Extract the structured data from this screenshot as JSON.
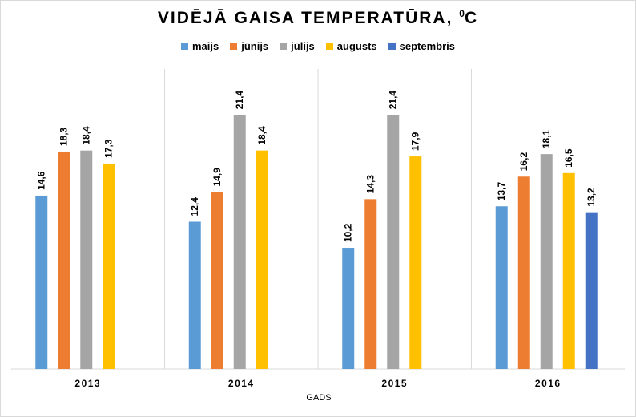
{
  "chart_data": {
    "type": "bar",
    "title": "VIDĒJĀ GAISA TEMPERATŪRA, ",
    "title_unit_sup": "0",
    "title_unit": "C",
    "xlabel": "GADS",
    "ylabel": "",
    "categories": [
      "2013",
      "2014",
      "2015",
      "2016"
    ],
    "series": [
      {
        "name": "maijs",
        "color": "#5b9bd5",
        "values": [
          14.6,
          12.4,
          10.2,
          13.7
        ]
      },
      {
        "name": "jūnijs",
        "color": "#ed7d31",
        "values": [
          18.3,
          14.9,
          14.3,
          16.2
        ]
      },
      {
        "name": "jūlijs",
        "color": "#a5a5a5",
        "values": [
          18.4,
          21.4,
          21.4,
          18.1
        ]
      },
      {
        "name": "augusts",
        "color": "#ffc000",
        "values": [
          17.3,
          18.4,
          17.9,
          16.5
        ]
      },
      {
        "name": "septembris",
        "color": "#4472c4",
        "values": [
          null,
          null,
          null,
          13.2
        ]
      }
    ],
    "ylim": [
      0,
      25
    ],
    "grid": false,
    "legend_position": "top"
  }
}
